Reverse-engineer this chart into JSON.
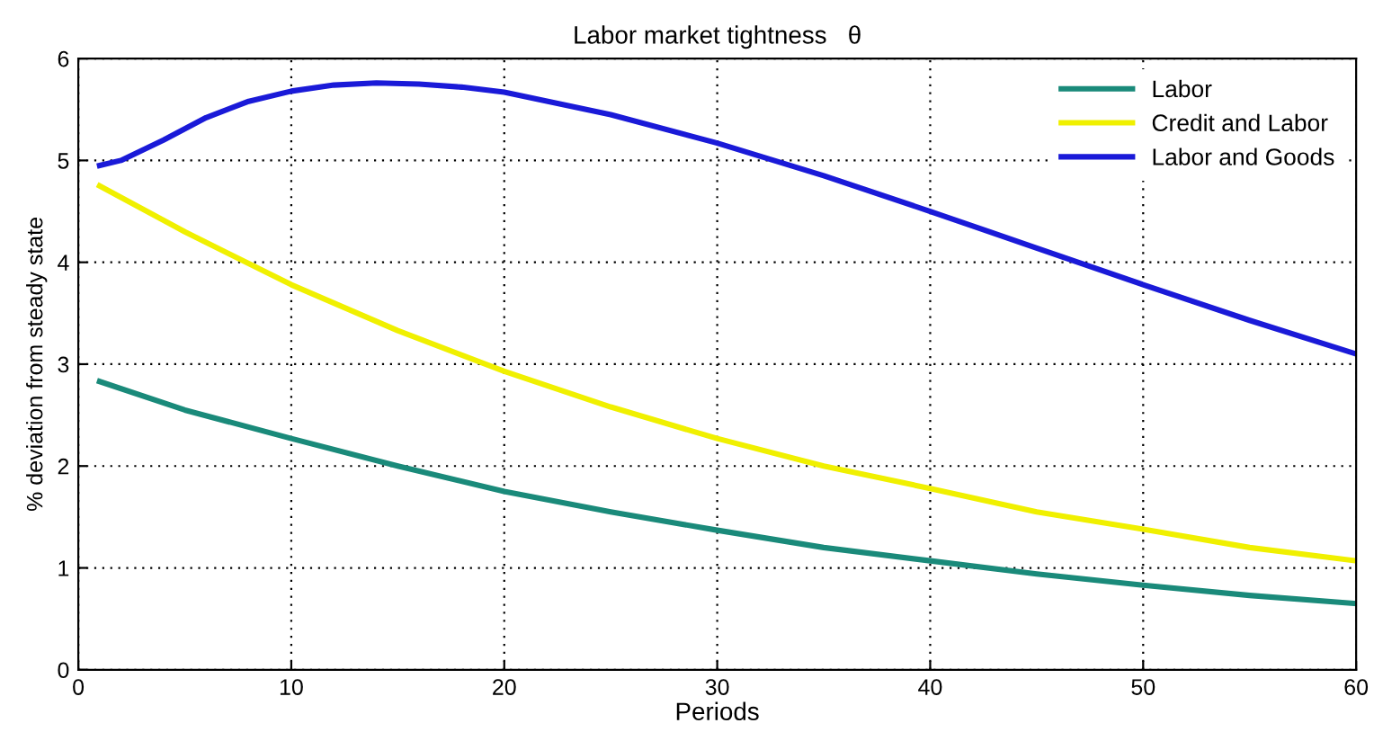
{
  "chart_data": {
    "type": "line",
    "title": "Labor market tightness   θ",
    "xlabel": "Periods",
    "ylabel": "% deviation from steady state",
    "xlim": [
      0,
      60
    ],
    "xticks": [
      0,
      10,
      20,
      30,
      40,
      50,
      60
    ],
    "ylim": [
      0,
      6
    ],
    "yticks": [
      0,
      1,
      2,
      3,
      4,
      5,
      6
    ],
    "grid": true,
    "legend": "top right",
    "line_style": "solid",
    "series": [
      {
        "name": "Labor",
        "color": "#1a8a7a",
        "x": [
          1,
          5,
          10,
          15,
          20,
          25,
          30,
          35,
          40,
          45,
          50,
          55,
          60
        ],
        "values": [
          2.83,
          2.55,
          2.27,
          2.0,
          1.75,
          1.55,
          1.37,
          1.2,
          1.07,
          0.94,
          0.83,
          0.73,
          0.65
        ]
      },
      {
        "name": "Credit and Labor",
        "color": "#f0f000",
        "x": [
          1,
          5,
          10,
          15,
          20,
          25,
          30,
          35,
          40,
          45,
          50,
          55,
          60
        ],
        "values": [
          4.75,
          4.3,
          3.78,
          3.33,
          2.93,
          2.58,
          2.27,
          2.0,
          1.78,
          1.55,
          1.38,
          1.2,
          1.07
        ]
      },
      {
        "name": "Labor and Goods",
        "color": "#1a1ad8",
        "x": [
          1,
          2,
          4,
          6,
          8,
          10,
          12,
          14,
          16,
          18,
          20,
          25,
          30,
          35,
          40,
          45,
          50,
          55,
          60
        ],
        "values": [
          4.95,
          5.0,
          5.2,
          5.42,
          5.58,
          5.68,
          5.74,
          5.76,
          5.75,
          5.72,
          5.67,
          5.45,
          5.17,
          4.85,
          4.5,
          4.14,
          3.78,
          3.43,
          3.1
        ]
      }
    ]
  }
}
